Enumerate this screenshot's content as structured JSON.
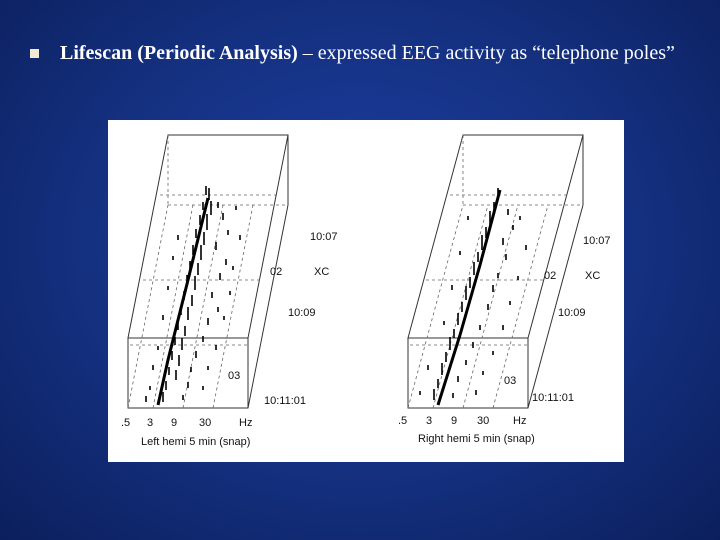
{
  "slide": {
    "bullet": {
      "title": "Lifescan (Periodic Analysis)",
      "text": " – expressed EEG activity as “telephone poles”"
    }
  },
  "figure": {
    "panels": [
      {
        "caption": "Left hemi 5 min (snap)",
        "x_ticks": [
          ".5",
          "3",
          "9",
          "30"
        ],
        "x_unit": "Hz",
        "time_labels": [
          "10:07",
          "10:09",
          "10:11:01"
        ],
        "epoch_labels": [
          "02",
          "03"
        ],
        "marker": "XC"
      },
      {
        "caption": "Right hemi 5 min (snap)",
        "x_ticks": [
          ".5",
          "3",
          "9",
          "30"
        ],
        "x_unit": "Hz",
        "time_labels": [
          "10:07",
          "10:09",
          "10:11:01"
        ],
        "epoch_labels": [
          "02",
          "03"
        ],
        "marker": "XC"
      }
    ]
  }
}
